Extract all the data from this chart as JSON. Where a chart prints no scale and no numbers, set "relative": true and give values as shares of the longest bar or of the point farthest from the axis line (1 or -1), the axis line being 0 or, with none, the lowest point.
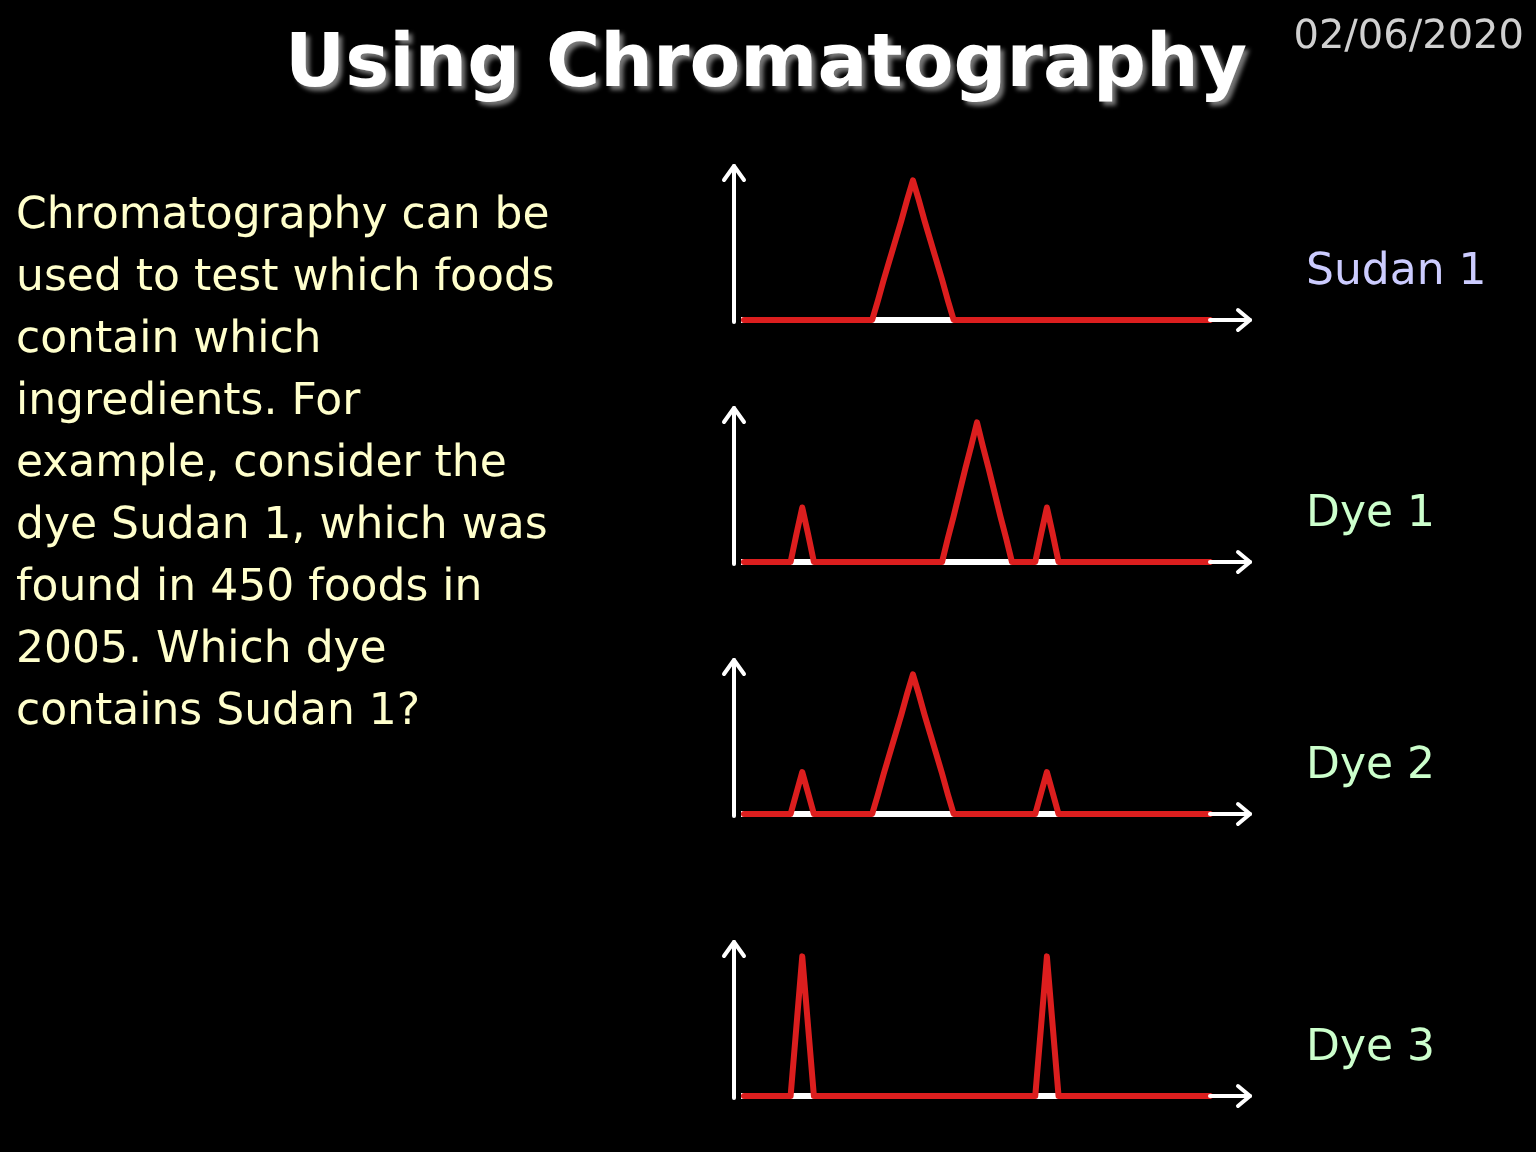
{
  "chart_data": [
    {
      "type": "other",
      "title": "Using Chromatography",
      "annotations": [
        "02/06/2020",
        "Chromatography can be used to test which foods contain which ingredients. For example, consider the dye Sudan 1, which was found in 450 foods in 2005. Which dye contains Sudan 1?"
      ]
    },
    {
      "type": "line",
      "relative": true,
      "categories": [
        null,
        null,
        null,
        null,
        null,
        null,
        null,
        null,
        null,
        null,
        null,
        null,
        null,
        null,
        null,
        null,
        null,
        null,
        null,
        null,
        null,
        null,
        null,
        null,
        null,
        null,
        null,
        null,
        null,
        null,
        null,
        null,
        null,
        null,
        null,
        null,
        null,
        null,
        null,
        null,
        null,
        null,
        null,
        null,
        null,
        null,
        null,
        null,
        null,
        null,
        null,
        null,
        null,
        null,
        null,
        null,
        null,
        null,
        null,
        null,
        null,
        null,
        null,
        null,
        null,
        null,
        null,
        null,
        null,
        null,
        null,
        null,
        null,
        null,
        null,
        null,
        null,
        null,
        null,
        null,
        null
      ],
      "series": [
        {
          "name": "Sudan 1",
          "color": "#dc1e1e",
          "values": [
            0,
            0,
            0,
            0,
            0,
            0,
            0,
            0,
            0,
            0,
            0,
            0,
            0,
            0,
            0,
            0,
            0,
            0,
            0,
            0,
            0,
            0,
            0,
            0.14,
            0.29,
            0.43,
            0.57,
            0.71,
            0.86,
            1,
            0.86,
            0.71,
            0.57,
            0.43,
            0.29,
            0.14,
            0,
            0,
            0,
            0,
            0,
            0,
            0,
            0,
            0,
            0,
            0,
            0,
            0,
            0,
            0,
            0,
            0,
            0,
            0,
            0,
            0,
            0,
            0,
            0,
            0,
            0,
            0,
            0,
            0,
            0,
            0,
            0,
            0,
            0,
            0,
            0,
            0,
            0,
            0,
            0,
            0,
            0,
            0,
            0,
            0
          ]
        }
      ]
    },
    {
      "type": "line",
      "relative": true,
      "categories": [
        null,
        null,
        null,
        null,
        null,
        null,
        null,
        null,
        null,
        null,
        null,
        null,
        null,
        null,
        null,
        null,
        null,
        null,
        null,
        null,
        null,
        null,
        null,
        null,
        null,
        null,
        null,
        null,
        null,
        null,
        null,
        null,
        null,
        null,
        null,
        null,
        null,
        null,
        null,
        null,
        null,
        null,
        null,
        null,
        null,
        null,
        null,
        null,
        null,
        null,
        null,
        null,
        null,
        null,
        null,
        null,
        null,
        null,
        null,
        null,
        null,
        null,
        null,
        null,
        null,
        null,
        null,
        null,
        null,
        null,
        null,
        null,
        null,
        null,
        null,
        null,
        null,
        null,
        null,
        null,
        null
      ],
      "series": [
        {
          "name": "Dye 1",
          "color": "#dc1e1e",
          "values": [
            0,
            0,
            0,
            0,
            0,
            0,
            0,
            0,
            0,
            0.2,
            0.39,
            0.2,
            0,
            0,
            0,
            0,
            0,
            0,
            0,
            0,
            0,
            0,
            0,
            0,
            0,
            0,
            0,
            0,
            0,
            0,
            0,
            0,
            0,
            0,
            0,
            0.17,
            0.33,
            0.5,
            0.67,
            0.83,
            1,
            0.83,
            0.67,
            0.5,
            0.33,
            0.17,
            0,
            0,
            0,
            0,
            0,
            0.2,
            0.39,
            0.2,
            0,
            0,
            0,
            0,
            0,
            0,
            0,
            0,
            0,
            0,
            0,
            0,
            0,
            0,
            0,
            0,
            0,
            0,
            0,
            0,
            0,
            0,
            0,
            0,
            0,
            0,
            0
          ]
        }
      ]
    },
    {
      "type": "line",
      "relative": true,
      "categories": [
        null,
        null,
        null,
        null,
        null,
        null,
        null,
        null,
        null,
        null,
        null,
        null,
        null,
        null,
        null,
        null,
        null,
        null,
        null,
        null,
        null,
        null,
        null,
        null,
        null,
        null,
        null,
        null,
        null,
        null,
        null,
        null,
        null,
        null,
        null,
        null,
        null,
        null,
        null,
        null,
        null,
        null,
        null,
        null,
        null,
        null,
        null,
        null,
        null,
        null,
        null,
        null,
        null,
        null,
        null,
        null,
        null,
        null,
        null,
        null,
        null,
        null,
        null,
        null,
        null,
        null,
        null,
        null,
        null,
        null,
        null,
        null,
        null,
        null,
        null,
        null,
        null,
        null,
        null,
        null,
        null
      ],
      "series": [
        {
          "name": "Dye 2",
          "color": "#dc1e1e",
          "values": [
            0,
            0,
            0,
            0,
            0,
            0,
            0,
            0,
            0,
            0.15,
            0.3,
            0.15,
            0,
            0,
            0,
            0,
            0,
            0,
            0,
            0,
            0,
            0,
            0,
            0.14,
            0.29,
            0.43,
            0.57,
            0.71,
            0.86,
            1,
            0.86,
            0.71,
            0.57,
            0.43,
            0.29,
            0.14,
            0,
            0,
            0,
            0,
            0,
            0,
            0,
            0,
            0,
            0,
            0,
            0,
            0,
            0,
            0,
            0.15,
            0.3,
            0.15,
            0,
            0,
            0,
            0,
            0,
            0,
            0,
            0,
            0,
            0,
            0,
            0,
            0,
            0,
            0,
            0,
            0,
            0,
            0,
            0,
            0,
            0,
            0,
            0,
            0,
            0,
            0
          ]
        }
      ]
    },
    {
      "type": "line",
      "relative": true,
      "categories": [
        null,
        null,
        null,
        null,
        null,
        null,
        null,
        null,
        null,
        null,
        null,
        null,
        null,
        null,
        null,
        null,
        null,
        null,
        null,
        null,
        null,
        null,
        null,
        null,
        null,
        null,
        null,
        null,
        null,
        null,
        null,
        null,
        null,
        null,
        null,
        null,
        null,
        null,
        null,
        null,
        null,
        null,
        null,
        null,
        null,
        null,
        null,
        null,
        null,
        null,
        null,
        null,
        null,
        null,
        null,
        null,
        null,
        null,
        null,
        null,
        null,
        null,
        null,
        null,
        null,
        null,
        null,
        null,
        null,
        null,
        null,
        null,
        null,
        null,
        null,
        null,
        null,
        null,
        null,
        null,
        null
      ],
      "series": [
        {
          "name": "Dye 3",
          "color": "#dc1e1e",
          "values": [
            0,
            0,
            0,
            0,
            0,
            0,
            0,
            0,
            0,
            0.5,
            1,
            0.5,
            0,
            0,
            0,
            0,
            0,
            0,
            0,
            0,
            0,
            0,
            0,
            0,
            0,
            0,
            0,
            0,
            0,
            0,
            0,
            0,
            0,
            0,
            0,
            0,
            0,
            0,
            0,
            0,
            0,
            0,
            0,
            0,
            0,
            0,
            0,
            0,
            0,
            0,
            0,
            0.5,
            1,
            0.5,
            0,
            0,
            0,
            0,
            0,
            0,
            0,
            0,
            0,
            0,
            0,
            0,
            0,
            0,
            0,
            0,
            0,
            0,
            0,
            0,
            0,
            0,
            0,
            0,
            0,
            0,
            0
          ]
        }
      ]
    }
  ]
}
